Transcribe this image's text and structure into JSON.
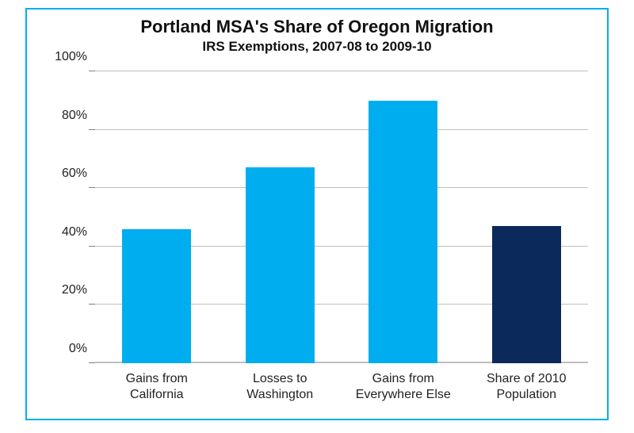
{
  "chart": {
    "type": "bar",
    "title": "Portland MSA's Share of Oregon Migration",
    "subtitle": "IRS Exemptions, 2007-08 to 2009-10",
    "title_fontsize": 22,
    "subtitle_fontsize": 17,
    "title_color": "#111111",
    "border_color": "#00aeef",
    "border_width": 2,
    "background_color": "#ffffff",
    "y_axis": {
      "min": 0,
      "max": 100,
      "tick_step": 20,
      "suffix": "%",
      "ticks": [
        0,
        20,
        40,
        60,
        80,
        100
      ],
      "label_fontsize": 16,
      "label_color": "#222222"
    },
    "grid": {
      "enabled": true,
      "color": "#bfbfbf",
      "width": 1
    },
    "bars": [
      {
        "label_line1": "Gains from",
        "label_line2": "California",
        "value": 46,
        "color": "#00aeef"
      },
      {
        "label_line1": "Losses to",
        "label_line2": "Washington",
        "value": 67,
        "color": "#00aeef"
      },
      {
        "label_line1": "Gains from",
        "label_line2": "Everywhere Else",
        "value": 90,
        "color": "#00aeef"
      },
      {
        "label_line1": "Share of 2010",
        "label_line2": "Population",
        "value": 47,
        "color": "#0b2a5b"
      }
    ],
    "bar_width_pct": 14,
    "bar_gap_pct": 11,
    "x_label_fontsize": 16,
    "x_label_color": "#222222"
  }
}
